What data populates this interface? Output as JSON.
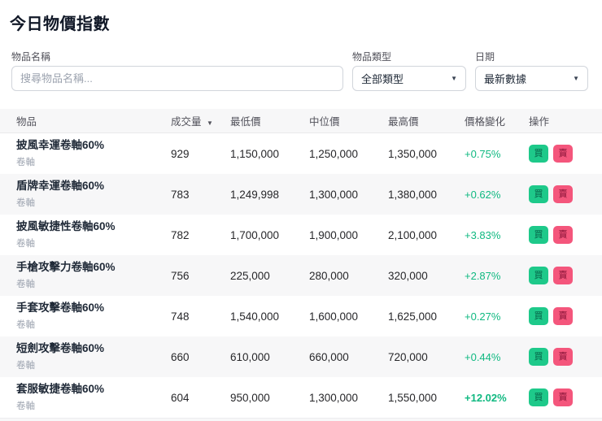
{
  "page": {
    "title": "今日物價指數"
  },
  "filters": {
    "name": {
      "label": "物品名稱",
      "placeholder": "搜尋物品名稱..."
    },
    "type": {
      "label": "物品類型",
      "value": "全部類型"
    },
    "date": {
      "label": "日期",
      "value": "最新數據"
    }
  },
  "table": {
    "headers": {
      "item": "物品",
      "volume": "成交量",
      "low": "最低價",
      "median": "中位價",
      "high": "最高價",
      "change": "價格變化",
      "actions": "操作"
    },
    "sort_icon": "▼",
    "buy_label": "買",
    "sell_label": "賣",
    "rows": [
      {
        "name": "披風幸運卷軸60%",
        "category": "卷軸",
        "volume": "929",
        "low": "1,150,000",
        "median": "1,250,000",
        "high": "1,350,000",
        "change": "+0.75%",
        "emphasis": false
      },
      {
        "name": "盾牌幸運卷軸60%",
        "category": "卷軸",
        "volume": "783",
        "low": "1,249,998",
        "median": "1,300,000",
        "high": "1,380,000",
        "change": "+0.62%",
        "emphasis": false
      },
      {
        "name": "披風敏捷性卷軸60%",
        "category": "卷軸",
        "volume": "782",
        "low": "1,700,000",
        "median": "1,900,000",
        "high": "2,100,000",
        "change": "+3.83%",
        "emphasis": false
      },
      {
        "name": "手槍攻擊力卷軸60%",
        "category": "卷軸",
        "volume": "756",
        "low": "225,000",
        "median": "280,000",
        "high": "320,000",
        "change": "+2.87%",
        "emphasis": false
      },
      {
        "name": "手套攻擊卷軸60%",
        "category": "卷軸",
        "volume": "748",
        "low": "1,540,000",
        "median": "1,600,000",
        "high": "1,625,000",
        "change": "+0.27%",
        "emphasis": false
      },
      {
        "name": "短劍攻擊卷軸60%",
        "category": "卷軸",
        "volume": "660",
        "low": "610,000",
        "median": "660,000",
        "high": "720,000",
        "change": "+0.44%",
        "emphasis": false
      },
      {
        "name": "套服敏捷卷軸60%",
        "category": "卷軸",
        "volume": "604",
        "low": "950,000",
        "median": "1,300,000",
        "high": "1,550,000",
        "change": "+12.02%",
        "emphasis": true
      }
    ]
  },
  "colors": {
    "positive": "#10b981",
    "buy_button": "#1ec98a",
    "sell_button": "#f4567c"
  }
}
